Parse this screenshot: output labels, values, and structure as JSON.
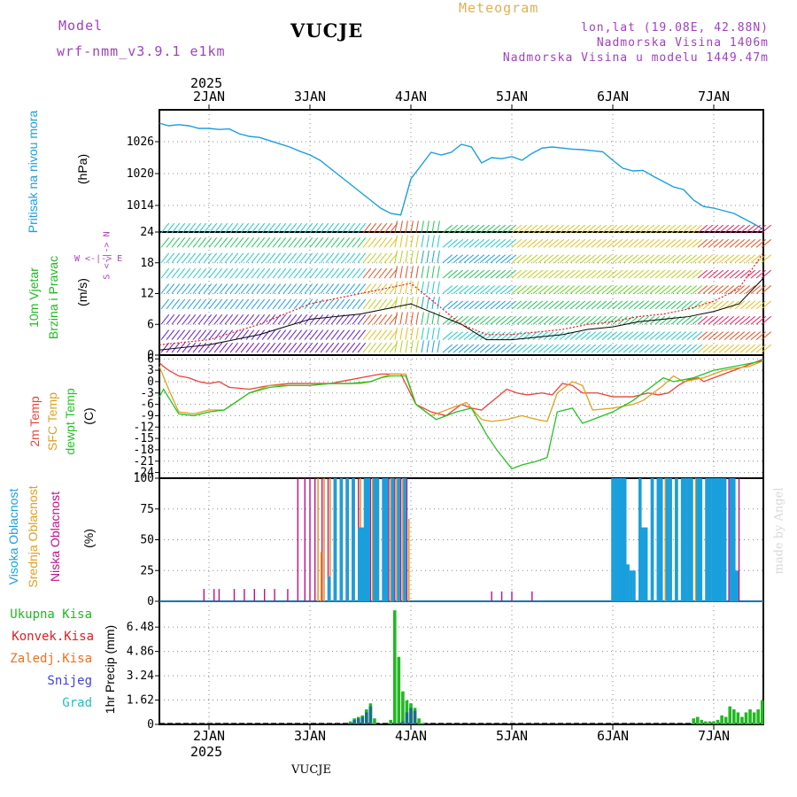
{
  "header": {
    "model_label": "Model",
    "model_name": "wrf-nmm_v3.9.1 e1km",
    "title": "VUCJE",
    "meteogram": "Meteogram",
    "lonlat": "lon,lat (19.08E, 42.88N)",
    "altitude": "Nadmorska Visina 1406m",
    "model_altitude": "Nadmorska Visina u modelu 1449.47m",
    "year": "2025",
    "footer_title": "VUCJE",
    "watermark": "made by Angel"
  },
  "colors": {
    "pressure": "#1a9fdd",
    "wind_speed": "#000000",
    "gust": "#e02020",
    "temp2m": "#e8433a",
    "sfc_temp": "#e0a020",
    "dewpt": "#22c322",
    "high_cloud": "#1a9fdd",
    "mid_cloud": "#e0a020",
    "low_cloud": "#c0108a",
    "total_precip": "#22b822",
    "conv_precip": "#e02020",
    "frz_precip": "#f07020",
    "snow": "#4040dd",
    "hail": "#20c0c0",
    "wind_dir_label": "#b040c0",
    "header_model": "#a040c0",
    "header_meteogram": "#e0b050"
  },
  "axis_dates": [
    "2JAN",
    "3JAN",
    "4JAN",
    "5JAN",
    "6JAN",
    "7JAN"
  ],
  "panels": {
    "pressure": {
      "label": "Pritisak na nivou mora",
      "unit": "(hPa)"
    },
    "wind": {
      "label1": "10m Vjetar",
      "label2": "Brzina i Pravac",
      "unit": "(m/s)",
      "compass": "W <-|-> E",
      "compass_v": "S <-|-> N"
    },
    "temp": {
      "label1": "2m Temp",
      "label2": "SFC Temp",
      "label3": "dewpt Temp",
      "unit": "(C)"
    },
    "cloud": {
      "label1": "Visoka Oblacnost",
      "label2": "Srednja Oblacnost",
      "label3": "Niska Oblacnost",
      "unit": "(%)"
    },
    "precip": {
      "unit": "1hr Precip (mm)",
      "legend": [
        "Ukupna Kisa",
        "Konvek.Kisa",
        "Zaledj.Kisa",
        "Snijeg",
        "Grad"
      ]
    }
  },
  "chart_data": [
    {
      "type": "line",
      "name": "pressure",
      "x_unit": "days since 2JAN 00h",
      "ylim": [
        1009,
        1032
      ],
      "yticks": [
        "1014",
        "1020",
        "1026"
      ],
      "ytick_values": [
        1014,
        1020,
        1026
      ],
      "x": [
        -0.5,
        -0.4,
        -0.3,
        -0.2,
        -0.1,
        0,
        0.1,
        0.2,
        0.3,
        0.4,
        0.5,
        0.6,
        0.7,
        0.8,
        0.9,
        1.0,
        1.1,
        1.2,
        1.3,
        1.4,
        1.5,
        1.6,
        1.7,
        1.8,
        1.9,
        2.0,
        2.1,
        2.2,
        2.3,
        2.4,
        2.5,
        2.6,
        2.7,
        2.8,
        2.9,
        3.0,
        3.1,
        3.2,
        3.3,
        3.4,
        3.5,
        3.6,
        3.7,
        3.8,
        3.9,
        4.0,
        4.1,
        4.2,
        4.3,
        4.4,
        4.5,
        4.6,
        4.7,
        4.8,
        4.9,
        5.0,
        5.1,
        5.2,
        5.3,
        5.4,
        5.5
      ],
      "values": [
        1029.5,
        1029,
        1029.2,
        1029,
        1028.5,
        1028.5,
        1028.3,
        1028.4,
        1027.5,
        1027,
        1026.8,
        1026.2,
        1025.6,
        1025,
        1024.2,
        1023.5,
        1022.5,
        1021,
        1019.5,
        1018,
        1016.5,
        1015,
        1013.5,
        1012.5,
        1012.2,
        1019,
        1021.5,
        1024,
        1023.5,
        1024,
        1025.5,
        1025,
        1022,
        1023,
        1022.8,
        1023.2,
        1022.5,
        1023.8,
        1024.8,
        1025,
        1024.8,
        1024.6,
        1024.5,
        1024.3,
        1024.1,
        1022.5,
        1021,
        1020.5,
        1020.6,
        1019.5,
        1018.5,
        1017.5,
        1017,
        1015,
        1013.8,
        1013.5,
        1013,
        1012.5,
        1011.5,
        1010.5,
        1009.5
      ]
    },
    {
      "type": "line",
      "name": "wind",
      "x_unit": "days since 2JAN 00h",
      "ylim": [
        0,
        24
      ],
      "yticks": [
        "0",
        "6",
        "12",
        "18",
        "24"
      ],
      "ytick_values": [
        0,
        6,
        12,
        18,
        24
      ],
      "x": [
        -0.5,
        -0.25,
        0,
        0.25,
        0.5,
        0.75,
        1.0,
        1.25,
        1.5,
        1.75,
        2.0,
        2.25,
        2.5,
        2.75,
        3.0,
        3.25,
        3.5,
        3.75,
        4.0,
        4.25,
        4.5,
        4.75,
        5.0,
        5.25,
        5.5
      ],
      "series": [
        {
          "name": "speed",
          "values": [
            1,
            1.5,
            2,
            3,
            4,
            5.5,
            7,
            7.5,
            8,
            9,
            10,
            8,
            6,
            3,
            3,
            3.5,
            4,
            5,
            5.5,
            6.5,
            7,
            7.5,
            8.5,
            10,
            15
          ]
        },
        {
          "name": "gust",
          "values": [
            2,
            2.5,
            3,
            4.5,
            6,
            8,
            10,
            11,
            12,
            13,
            14,
            10,
            6,
            4,
            4,
            4.5,
            5,
            6,
            6.5,
            7.5,
            8,
            9,
            10.5,
            13,
            20
          ]
        }
      ]
    },
    {
      "type": "line",
      "name": "temperature",
      "x_unit": "days since 2JAN 00h",
      "ylim": [
        -25.5,
        7
      ],
      "yticks": [
        "-24",
        "-21",
        "-18",
        "-15",
        "-12",
        "-9",
        "-6",
        "-3",
        "0",
        "3",
        "6"
      ],
      "ytick_values": [
        -24,
        -21,
        -18,
        -15,
        -12,
        -9,
        -6,
        -3,
        0,
        3,
        6
      ],
      "x": [
        -0.5,
        -0.45,
        -0.4,
        -0.3,
        -0.2,
        -0.1,
        0,
        0.1,
        0.2,
        0.3,
        0.4,
        0.5,
        0.6,
        0.7,
        0.8,
        0.9,
        1.0,
        1.1,
        1.2,
        1.3,
        1.4,
        1.5,
        1.6,
        1.7,
        1.8,
        1.9,
        2.0,
        2.1,
        2.2,
        2.3,
        2.4,
        2.5,
        2.6,
        2.7,
        2.8,
        2.9,
        3.0,
        3.1,
        3.2,
        3.3,
        3.4,
        3.5,
        3.6,
        3.7,
        3.8,
        3.9,
        4.0,
        4.1,
        4.2,
        4.3,
        4.4,
        4.5,
        4.6,
        4.7,
        4.8,
        4.9,
        5.0,
        5.1,
        5.2,
        5.3,
        5.4,
        5.5
      ],
      "series": [
        {
          "name": "2m",
          "values": [
            5,
            4,
            3,
            1.5,
            1,
            0,
            -0.5,
            0,
            -1.5,
            -2,
            -1,
            -0.5,
            -0.5,
            -0.5,
            -0.5,
            0,
            0.5,
            1,
            1.5,
            2,
            2,
            -6,
            -8,
            -9,
            -6,
            -7,
            -7.5,
            -2,
            -3,
            -3.5,
            -3,
            -3.5,
            -0.5,
            -1,
            -3,
            -3,
            -4,
            -4,
            -3,
            -3.5,
            -3,
            -1,
            0.5,
            1,
            0,
            1,
            1.5,
            2,
            2.5,
            3,
            3.5,
            4,
            4.5,
            5,
            5.5,
            5.8,
            6
          ],
          "x": [
            -0.5,
            -0.45,
            -0.4,
            -0.3,
            -0.2,
            -0.1,
            0,
            0.1,
            0.2,
            0.4,
            0.6,
            0.8,
            1.0,
            1.1,
            1.2,
            1.3,
            1.4,
            1.5,
            1.6,
            1.7,
            1.9,
            2.05,
            2.2,
            2.35,
            2.5,
            2.6,
            2.7,
            2.95,
            3.05,
            3.15,
            3.3,
            3.4,
            3.5,
            3.6,
            3.7,
            3.85,
            4.0,
            4.2,
            4.35,
            4.45,
            4.55,
            4.65,
            4.75,
            4.85,
            4.9,
            5.0,
            5.05,
            5.1,
            5.15,
            5.2,
            5.25,
            5.3,
            5.35,
            5.4,
            5.45,
            5.48,
            5.5
          ]
        },
        {
          "name": "sfc",
          "values": [
            4,
            -2,
            -8,
            -8.5,
            -7.5,
            -7.5,
            -3,
            -1,
            -1,
            -1,
            -0.5,
            -0.5,
            -0.5,
            0,
            1,
            2,
            2,
            -6,
            -9,
            -7,
            -5.5,
            -10,
            -10.5,
            -10,
            -9,
            -10,
            -10.5,
            -3,
            0,
            -1,
            -7.5,
            -7,
            -6,
            -5,
            -3,
            -1,
            1.5,
            0,
            0.5,
            1,
            2,
            3,
            3.5,
            4,
            5.5
          ],
          "x": [
            -0.5,
            -0.4,
            -0.3,
            -0.15,
            0,
            0.15,
            0.4,
            0.6,
            0.8,
            1.0,
            1.2,
            1.4,
            1.5,
            1.6,
            1.7,
            1.8,
            1.95,
            2.05,
            2.2,
            2.4,
            2.55,
            2.7,
            2.8,
            2.95,
            3.1,
            3.25,
            3.35,
            3.45,
            3.6,
            3.7,
            3.8,
            4.0,
            4.2,
            4.3,
            4.4,
            4.5,
            4.6,
            4.7,
            4.8,
            4.9,
            5.0,
            5.1,
            5.2,
            5.35,
            5.5
          ]
        },
        {
          "name": "dewpt",
          "values": [
            -4,
            -2,
            -8.5,
            -9,
            -8,
            -7.5,
            -3,
            -1.5,
            -1,
            -1,
            -0.5,
            -0.5,
            0,
            1,
            1.5,
            1.5,
            -6,
            -10,
            -8,
            -7,
            -14,
            -18,
            -23,
            -22,
            -21,
            -20,
            -8,
            -7,
            -11,
            -10,
            -8,
            -5,
            -3,
            -1,
            1,
            0,
            0.5,
            1,
            2,
            3,
            3.5,
            4,
            5.5
          ],
          "x": [
            -0.5,
            -0.45,
            -0.3,
            -0.15,
            0,
            0.15,
            0.4,
            0.6,
            0.8,
            1.0,
            1.2,
            1.4,
            1.6,
            1.7,
            1.8,
            1.95,
            2.05,
            2.25,
            2.45,
            2.6,
            2.75,
            2.85,
            3.0,
            3.1,
            3.25,
            3.35,
            3.45,
            3.6,
            3.7,
            3.8,
            4.0,
            4.2,
            4.3,
            4.4,
            4.5,
            4.6,
            4.7,
            4.8,
            4.9,
            5.0,
            5.1,
            5.2,
            5.5
          ]
        }
      ]
    },
    {
      "type": "bar",
      "name": "cloud",
      "x_unit": "days since 2JAN 00h",
      "ylim": [
        0,
        100
      ],
      "yticks": [
        "0",
        "25",
        "50",
        "75",
        "100"
      ],
      "ytick_values": [
        0,
        25,
        50,
        75,
        100
      ],
      "high_x": [
        1.1,
        1.13,
        1.16,
        1.19,
        1.22,
        1.25,
        1.28,
        1.31,
        1.34,
        1.37,
        1.4,
        1.43,
        1.46,
        1.49,
        1.52,
        1.55,
        1.58,
        1.61,
        1.64,
        1.67,
        1.7,
        1.73,
        1.76,
        1.79,
        1.82,
        1.85,
        1.88,
        1.91,
        1.94,
        4.0,
        4.03,
        4.06,
        4.09,
        4.12,
        4.15,
        4.18,
        4.21,
        4.24,
        4.27,
        4.3,
        4.33,
        4.36,
        4.39,
        4.42,
        4.45,
        4.48,
        4.51,
        4.54,
        4.57,
        4.6,
        4.63,
        4.66,
        4.69,
        4.72,
        4.75,
        4.78,
        4.81,
        4.84,
        4.87,
        4.9,
        4.93,
        4.96,
        4.99,
        5.02,
        5.05,
        5.08,
        5.11,
        5.14,
        5.17,
        5.2,
        5.23
      ],
      "high_values": [
        0,
        0,
        0,
        20,
        0,
        100,
        0,
        100,
        0,
        100,
        0,
        100,
        0,
        60,
        60,
        100,
        100,
        0,
        100,
        100,
        0,
        100,
        100,
        0,
        100,
        0,
        100,
        0,
        100,
        100,
        100,
        100,
        100,
        100,
        30,
        25,
        25,
        0,
        100,
        60,
        60,
        0,
        100,
        0,
        100,
        100,
        0,
        100,
        100,
        0,
        100,
        0,
        100,
        100,
        100,
        100,
        0,
        100,
        100,
        0,
        100,
        100,
        100,
        100,
        100,
        100,
        100,
        0,
        100,
        100,
        25
      ],
      "mid_x": [
        1.08,
        1.11,
        1.14,
        1.2,
        1.26,
        1.32,
        1.38,
        1.44,
        1.5,
        1.56,
        1.62,
        1.68,
        1.74,
        1.8,
        1.86,
        1.92,
        1.98,
        4.4,
        4.46,
        4.52,
        4.58,
        4.64,
        4.7,
        4.76,
        4.82,
        4.88,
        4.94
      ],
      "mid_values": [
        100,
        40,
        100,
        100,
        100,
        100,
        100,
        100,
        100,
        100,
        100,
        100,
        100,
        100,
        100,
        100,
        67,
        100,
        65,
        100,
        100,
        100,
        100,
        100,
        100,
        100,
        100
      ],
      "low_x": [
        -0.05,
        0.05,
        0.1,
        0.25,
        0.35,
        0.45,
        0.55,
        0.65,
        0.78,
        0.88,
        0.95,
        1.0,
        1.05,
        1.12,
        1.18,
        1.24,
        1.3,
        1.36,
        1.42,
        1.48,
        1.54,
        1.6,
        1.66,
        1.72,
        1.78,
        1.84,
        1.9,
        1.96,
        2.8,
        2.9,
        3.0,
        3.2,
        4.85,
        4.95,
        5.05,
        5.15,
        5.25
      ],
      "low_values": [
        10,
        10,
        10,
        10,
        10,
        10,
        10,
        10,
        10,
        100,
        100,
        100,
        100,
        100,
        100,
        100,
        100,
        100,
        100,
        100,
        100,
        100,
        100,
        100,
        100,
        100,
        100,
        100,
        8,
        8,
        8,
        8,
        100,
        100,
        100,
        100,
        100
      ]
    },
    {
      "type": "bar",
      "name": "precip",
      "x_unit": "days since 2JAN 00h",
      "ylim": [
        0,
        8.2
      ],
      "yticks": [
        "0",
        "1.62",
        "3.24",
        "4.86",
        "6.48"
      ],
      "ytick_values": [
        0,
        1.62,
        3.24,
        4.86,
        6.48
      ],
      "total_x": [
        1.4,
        1.44,
        1.48,
        1.52,
        1.56,
        1.6,
        1.64,
        1.8,
        1.84,
        1.88,
        1.92,
        1.96,
        2.0,
        2.04,
        2.08,
        2.12,
        4.8,
        4.84,
        4.88,
        4.92,
        4.96,
        5.0,
        5.04,
        5.08,
        5.12,
        5.16,
        5.2,
        5.24,
        5.28,
        5.32,
        5.36,
        5.4,
        5.44,
        5.48
      ],
      "total_values": [
        0.2,
        0.4,
        0.5,
        0.6,
        1.0,
        1.4,
        0.4,
        0.3,
        7.6,
        4.5,
        2.2,
        1.6,
        1.4,
        1.1,
        0.4,
        0.1,
        0.4,
        0.5,
        0.3,
        0.2,
        0.2,
        0.2,
        0.3,
        0.6,
        0.5,
        1.2,
        1.0,
        0.8,
        0.5,
        0.8,
        1.0,
        0.8,
        1.0,
        1.6
      ],
      "snow_x": [
        1.4,
        1.44,
        1.48,
        1.52,
        1.56,
        1.6,
        1.84,
        1.88,
        1.92,
        1.96,
        2.0,
        2.04
      ],
      "snow_values": [
        0.1,
        0.3,
        0.4,
        0.5,
        0.8,
        1.2,
        0.1,
        0.1,
        0.2,
        0.8,
        1.1,
        0.9
      ]
    }
  ]
}
